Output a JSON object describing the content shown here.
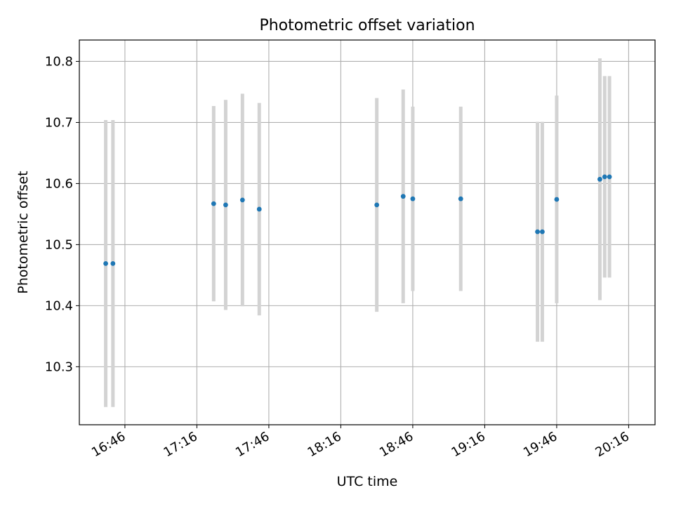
{
  "chart_data": {
    "type": "scatter",
    "title": "Photometric offset variation",
    "xlabel": "UTC time",
    "ylabel": "Photometric offset",
    "x_tick_labels": [
      "16:46",
      "17:16",
      "17:46",
      "18:16",
      "18:46",
      "19:16",
      "19:46",
      "20:16"
    ],
    "y_tick_labels": [
      "10.3",
      "10.4",
      "10.5",
      "10.6",
      "10.7",
      "10.8"
    ],
    "ylim": [
      10.205,
      10.835
    ],
    "xlim": [
      "16:27",
      "20:27"
    ],
    "grid": true,
    "series": [
      {
        "marker_color": "#1f77b4",
        "errorbar_color": "#d3d3d3",
        "points": [
          {
            "x": "16:38",
            "y": 10.469,
            "err": 0.235
          },
          {
            "x": "16:41",
            "y": 10.469,
            "err": 0.235
          },
          {
            "x": "17:23",
            "y": 10.567,
            "err": 0.16
          },
          {
            "x": "17:28",
            "y": 10.565,
            "err": 0.172
          },
          {
            "x": "17:35",
            "y": 10.573,
            "err": 0.174
          },
          {
            "x": "17:42",
            "y": 10.558,
            "err": 0.174
          },
          {
            "x": "18:31",
            "y": 10.565,
            "err": 0.175
          },
          {
            "x": "18:42",
            "y": 10.579,
            "err": 0.175
          },
          {
            "x": "18:46",
            "y": 10.575,
            "err": 0.151
          },
          {
            "x": "19:06",
            "y": 10.575,
            "err": 0.151
          },
          {
            "x": "19:38",
            "y": 10.521,
            "err": 0.18
          },
          {
            "x": "19:40",
            "y": 10.521,
            "err": 0.18
          },
          {
            "x": "19:46",
            "y": 10.574,
            "err": 0.17
          },
          {
            "x": "20:04",
            "y": 10.607,
            "err": 0.198
          },
          {
            "x": "20:06",
            "y": 10.611,
            "err": 0.165
          },
          {
            "x": "20:08",
            "y": 10.611,
            "err": 0.165
          }
        ]
      }
    ]
  }
}
